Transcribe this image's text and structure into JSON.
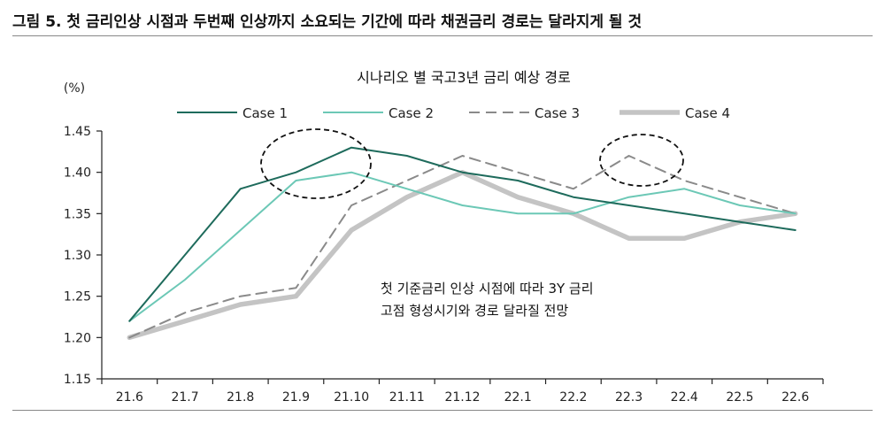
{
  "figure_title": "그림 5. 첫 금리인상 시점과 두번째 인상까지 소요되는 기간에 따라 채권금리 경로는 달라지게 될 것",
  "chart_data": {
    "type": "line",
    "title": "시나리오 별 국고3년 금리 예상 경로",
    "ylabel": "(%)",
    "xlabel": "",
    "ylim": [
      1.15,
      1.45
    ],
    "yticks": [
      "1.15",
      "1.20",
      "1.25",
      "1.30",
      "1.35",
      "1.40",
      "1.45"
    ],
    "categories": [
      "21.6",
      "21.7",
      "21.8",
      "21.9",
      "21.10",
      "21.11",
      "21.12",
      "22.1",
      "22.2",
      "22.3",
      "22.4",
      "22.5",
      "22.6"
    ],
    "legend_position": "top",
    "series": [
      {
        "name": "Case 1",
        "color": "#1e6b5c",
        "style": "solid",
        "values": [
          1.22,
          1.3,
          1.38,
          1.4,
          1.43,
          1.42,
          1.4,
          1.39,
          1.37,
          1.36,
          1.35,
          1.34,
          1.33
        ]
      },
      {
        "name": "Case 2",
        "color": "#6cc8b6",
        "style": "solid",
        "values": [
          1.22,
          1.27,
          1.33,
          1.39,
          1.4,
          1.38,
          1.36,
          1.35,
          1.35,
          1.37,
          1.38,
          1.36,
          1.35
        ]
      },
      {
        "name": "Case 3",
        "color": "#8a8a8a",
        "style": "dashed",
        "values": [
          1.2,
          1.23,
          1.25,
          1.26,
          1.36,
          1.39,
          1.42,
          1.4,
          1.38,
          1.42,
          1.39,
          1.37,
          1.35
        ]
      },
      {
        "name": "Case 4",
        "color": "#c4c4c4",
        "style": "thick",
        "values": [
          1.2,
          1.22,
          1.24,
          1.25,
          1.33,
          1.37,
          1.4,
          1.37,
          1.35,
          1.32,
          1.32,
          1.34,
          1.35
        ]
      }
    ],
    "annotation_lines": [
      "첫 기준금리 인상 시점에 따라 3Y 금리",
      "고점 형성시기와 경로 달라질 전망"
    ]
  }
}
